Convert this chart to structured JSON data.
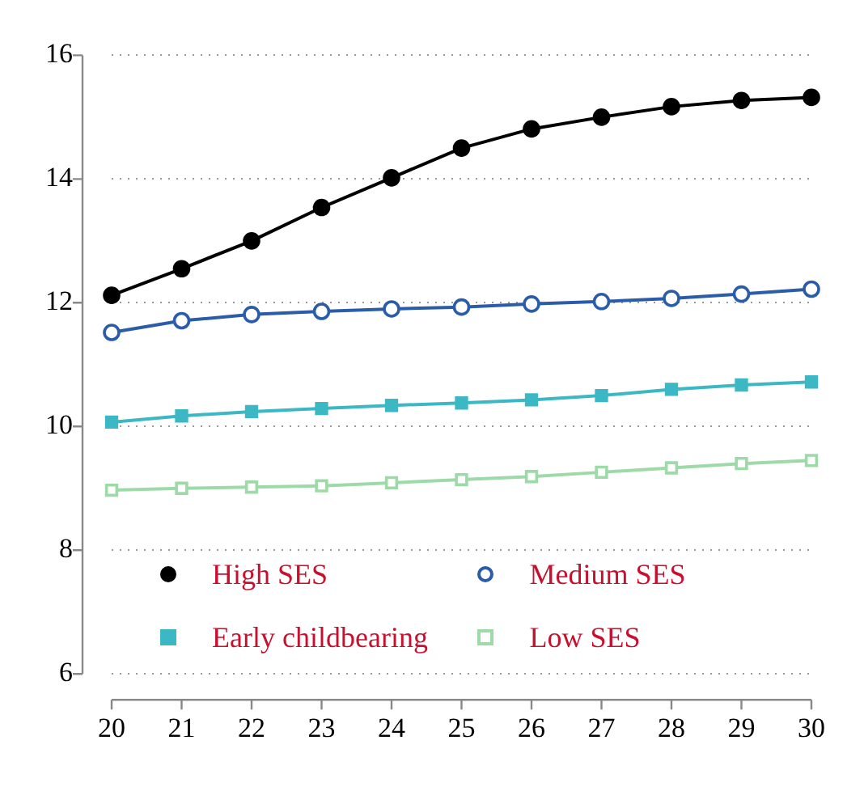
{
  "chart_data": {
    "type": "line",
    "x": [
      20,
      21,
      22,
      23,
      24,
      25,
      26,
      27,
      28,
      29,
      30
    ],
    "xlim": [
      20,
      30
    ],
    "xticks": [
      20,
      21,
      22,
      23,
      24,
      25,
      26,
      27,
      28,
      29,
      30
    ],
    "ylim": [
      6,
      16
    ],
    "yticks": [
      6,
      8,
      10,
      12,
      14,
      16
    ],
    "grid": "y",
    "legend": "bottom",
    "series": [
      {
        "name": "High SES",
        "color": "#000000",
        "marker": "circle",
        "values": [
          12.12,
          12.55,
          13.0,
          13.54,
          14.02,
          14.5,
          14.81,
          15.0,
          15.17,
          15.27,
          15.32
        ]
      },
      {
        "name": "Medium SES",
        "color": "#2a5caa",
        "marker": "circle",
        "values": [
          11.52,
          11.71,
          11.81,
          11.86,
          11.9,
          11.93,
          11.98,
          12.02,
          12.07,
          12.14,
          12.22
        ]
      },
      {
        "name": "Early childbearing",
        "color": "#3bb8c4",
        "marker": "square",
        "values": [
          10.07,
          10.17,
          10.24,
          10.29,
          10.34,
          10.38,
          10.43,
          10.5,
          10.6,
          10.67,
          10.72
        ]
      },
      {
        "name": "Low SES",
        "color": "#9ed9a8",
        "marker": "square",
        "values": [
          8.97,
          9.0,
          9.02,
          9.04,
          9.09,
          9.14,
          9.19,
          9.26,
          9.33,
          9.4,
          9.45
        ]
      }
    ]
  }
}
